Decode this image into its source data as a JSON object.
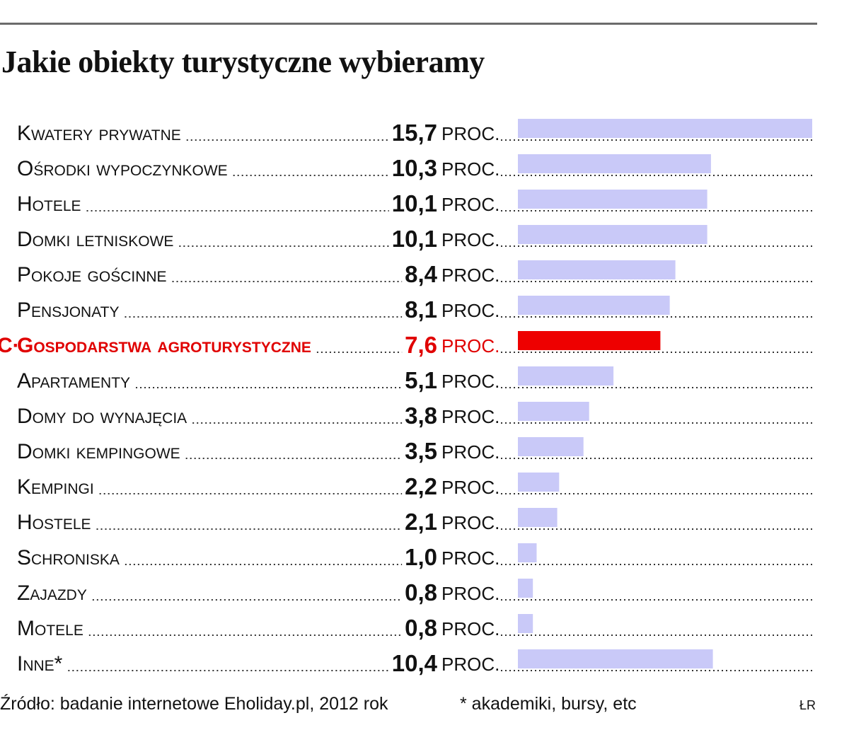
{
  "title": "Jakie obiekty turystyczne wybieramy",
  "chart_data": {
    "type": "bar",
    "orientation": "horizontal",
    "title": "Jakie obiekty turystyczne wybieramy",
    "unit": "PROC.",
    "highlight_marker": "C·",
    "categories": [
      "Kwatery prywatne",
      "Ośrodki wypoczynkowe",
      "Hotele",
      "Domki letniskowe",
      "Pokoje gościnne",
      "Pensjonaty",
      "Gospodarstwa agroturystyczne",
      "Apartamenty",
      "Domy do wynajęcia",
      "Domki kempingowe",
      "Kempingi",
      "Hostele",
      "Schroniska",
      "Zajazdy",
      "Motele",
      "Inne*"
    ],
    "value_labels": [
      "15,7",
      "10,3",
      "10,1",
      "10,1",
      "8,4",
      "8,1",
      "7,6",
      "5,1",
      "3,8",
      "3,5",
      "2,2",
      "2,1",
      "1,0",
      "0,8",
      "0,8",
      "10,4"
    ],
    "values": [
      15.7,
      10.3,
      10.1,
      10.1,
      8.4,
      8.1,
      7.6,
      5.1,
      3.8,
      3.5,
      2.2,
      2.1,
      1.0,
      0.8,
      0.8,
      10.4
    ],
    "highlighted_index": 6,
    "colors": {
      "bar": "#c9c9f8",
      "highlight": "#ee0000",
      "text": "#111111",
      "highlight_text": "#e00000",
      "rule": "#6b6b6b"
    }
  },
  "footer": {
    "source": "Źródło: badanie internetowe Eholiday.pl, 2012 rok",
    "note": "* akademiki, bursy, etc",
    "credit": "ŁR"
  }
}
